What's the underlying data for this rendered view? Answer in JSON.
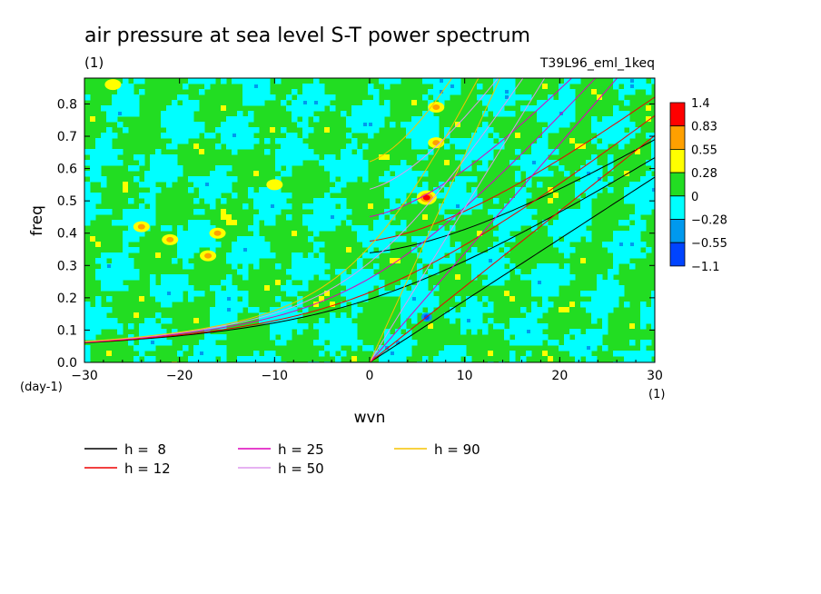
{
  "chart_data": {
    "type": "heatmap",
    "title": "air pressure at sea level S-T power spectrum",
    "subtitle_left": "(1)",
    "subtitle_right": "T39L96_eml_1keq",
    "xlabel": "wvn",
    "ylabel": "freq",
    "x_unit": "(1)",
    "y_unit": "(day-1)",
    "xlim": [
      -30,
      30
    ],
    "ylim": [
      0.0,
      0.88
    ],
    "x_ticks": [
      {
        "value": -30,
        "label": "−30"
      },
      {
        "value": -20,
        "label": "−20"
      },
      {
        "value": -10,
        "label": "−10"
      },
      {
        "value": 0,
        "label": "0"
      },
      {
        "value": 10,
        "label": "10"
      },
      {
        "value": 20,
        "label": "20"
      },
      {
        "value": 30,
        "label": "30"
      }
    ],
    "y_ticks": [
      {
        "value": 0.0,
        "label": "0.0"
      },
      {
        "value": 0.1,
        "label": "0.1"
      },
      {
        "value": 0.2,
        "label": "0.2"
      },
      {
        "value": 0.3,
        "label": "0.3"
      },
      {
        "value": 0.4,
        "label": "0.4"
      },
      {
        "value": 0.5,
        "label": "0.5"
      },
      {
        "value": 0.6,
        "label": "0.6"
      },
      {
        "value": 0.7,
        "label": "0.7"
      },
      {
        "value": 0.8,
        "label": "0.8"
      }
    ],
    "colorbar": {
      "levels": [
        "1.4",
        "0.83",
        "0.55",
        "0.28",
        "0",
        "−0.28",
        "−0.55",
        "−1.1"
      ],
      "colors": [
        "#ff0000",
        "#ffa000",
        "#ffff00",
        "#22dd22",
        "#00ffff",
        "#0099ee",
        "#0044ff"
      ]
    },
    "field_colors": {
      "background": "#22dd22",
      "low": "#00ffff",
      "lower": "#0099ee",
      "lowest": "#0044ff",
      "high": "#ffff00",
      "higher": "#ffa000",
      "highest": "#ff0000"
    },
    "hotspots": [
      {
        "x": 6,
        "y": 0.51,
        "level": "1.4"
      },
      {
        "x": 7,
        "y": 0.68,
        "level": "0.55"
      },
      {
        "x": 7,
        "y": 0.79,
        "level": "0.55"
      },
      {
        "x": -24,
        "y": 0.42,
        "level": "0.55"
      },
      {
        "x": -17,
        "y": 0.33,
        "level": "0.55"
      },
      {
        "x": -21,
        "y": 0.38,
        "level": "0.55"
      },
      {
        "x": -16,
        "y": 0.4,
        "level": "0.55"
      },
      {
        "x": 6,
        "y": 0.14,
        "level": "-0.55"
      },
      {
        "x": -10,
        "y": 0.55,
        "level": "0.28"
      },
      {
        "x": -27,
        "y": 0.86,
        "level": "0.28"
      }
    ],
    "series": [
      {
        "name": "h =  8",
        "color": "#000000",
        "dispersion_equivalent_depth_m": 8
      },
      {
        "name": "h = 12",
        "color": "#ee0000",
        "dispersion_equivalent_depth_m": 12
      },
      {
        "name": "h = 25",
        "color": "#dd00bb",
        "dispersion_equivalent_depth_m": 25
      },
      {
        "name": "h = 50",
        "color": "#dd99ee",
        "dispersion_equivalent_depth_m": 50
      },
      {
        "name": "h = 90",
        "color": "#f5c400",
        "dispersion_equivalent_depth_m": 90
      }
    ]
  }
}
